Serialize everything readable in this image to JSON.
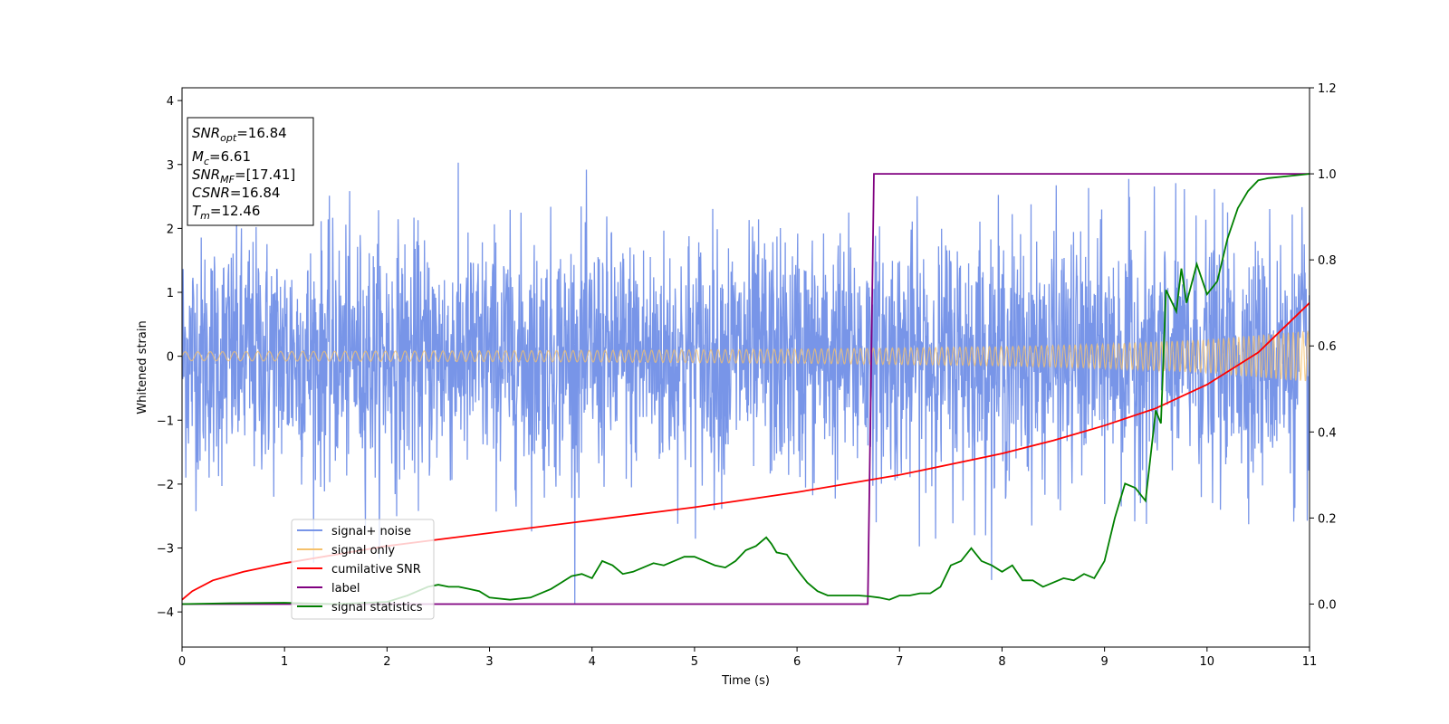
{
  "chart_data": {
    "type": "line",
    "xlabel": "Time (s)",
    "ylabel": "Whitened strain",
    "xlim": [
      0,
      11
    ],
    "ylim": [
      -4.55,
      4.2
    ],
    "y2lim": [
      -0.1,
      1.2
    ],
    "xticks": [
      "0",
      "1",
      "2",
      "3",
      "4",
      "5",
      "6",
      "7",
      "8",
      "9",
      "10",
      "11"
    ],
    "yticks": [
      "−4",
      "−3",
      "−2",
      "−1",
      "0",
      "1",
      "2",
      "3",
      "4"
    ],
    "y2ticks": [
      "0.0",
      "0.2",
      "0.4",
      "0.6",
      "0.8",
      "1.0",
      "1.2"
    ],
    "grid": false,
    "legend_position": "lower-left",
    "info_box": {
      "snr_opt": {
        "sym": "SNR",
        "sub": "opt",
        "val": "=16.84"
      },
      "mc": {
        "sym": "M",
        "sub": "c",
        "val": "=6.61"
      },
      "snr_mf": {
        "sym": "SNR",
        "sub": "MF",
        "val": "=[17.41]"
      },
      "csnr": {
        "sym": "CSNR",
        "sub": "",
        "val": "=16.84"
      },
      "tm": {
        "sym": "T",
        "sub": "m",
        "val": "=12.46"
      }
    },
    "series": [
      {
        "name": "signal+ noise",
        "color": "#7895e8",
        "axis": "left",
        "description_values": {
          "noise_sigma": 1.0,
          "max_abs": 4.2
        }
      },
      {
        "name": "signal only",
        "color": "#f5c16c",
        "axis": "left",
        "envelope": {
          "x": [
            0,
            2,
            4,
            6,
            8,
            9,
            10,
            11
          ],
          "amplitude": [
            0.07,
            0.08,
            0.09,
            0.11,
            0.15,
            0.19,
            0.26,
            0.4
          ]
        }
      },
      {
        "name": "cumilative SNR",
        "color": "#ff0000",
        "axis": "right",
        "x": [
          0,
          0.1,
          0.3,
          0.6,
          1,
          1.5,
          2,
          3,
          4,
          5,
          6,
          7,
          7.5,
          8,
          8.5,
          9,
          9.5,
          10,
          10.5,
          11
        ],
        "y": [
          0.01,
          0.03,
          0.055,
          0.075,
          0.095,
          0.115,
          0.135,
          0.165,
          0.195,
          0.225,
          0.26,
          0.3,
          0.325,
          0.35,
          0.38,
          0.415,
          0.455,
          0.51,
          0.585,
          0.7
        ]
      },
      {
        "name": "label",
        "color": "#800080",
        "axis": "right",
        "x": [
          0,
          6.69,
          6.75,
          11
        ],
        "y": [
          0.0,
          0.0,
          1.0,
          1.0
        ]
      },
      {
        "name": "signal statistics",
        "color": "#008000",
        "axis": "right",
        "x": [
          0,
          0.5,
          1,
          1.5,
          2,
          2.2,
          2.4,
          2.5,
          2.6,
          2.7,
          2.8,
          2.9,
          3,
          3.2,
          3.4,
          3.6,
          3.7,
          3.8,
          3.9,
          4,
          4.1,
          4.2,
          4.3,
          4.4,
          4.5,
          4.6,
          4.7,
          4.8,
          4.9,
          5,
          5.1,
          5.2,
          5.3,
          5.4,
          5.5,
          5.6,
          5.7,
          5.75,
          5.8,
          5.9,
          6,
          6.1,
          6.2,
          6.3,
          6.4,
          6.5,
          6.6,
          6.7,
          6.8,
          6.9,
          7,
          7.1,
          7.2,
          7.3,
          7.4,
          7.5,
          7.6,
          7.7,
          7.8,
          7.9,
          8,
          8.1,
          8.2,
          8.3,
          8.4,
          8.5,
          8.6,
          8.7,
          8.8,
          8.9,
          9,
          9.1,
          9.2,
          9.3,
          9.4,
          9.5,
          9.55,
          9.6,
          9.7,
          9.75,
          9.8,
          9.9,
          10,
          10.1,
          10.2,
          10.3,
          10.4,
          10.5,
          10.6,
          10.8,
          11
        ],
        "y": [
          0.0,
          0.002,
          0.003,
          0.0,
          0.005,
          0.02,
          0.04,
          0.045,
          0.04,
          0.04,
          0.035,
          0.03,
          0.015,
          0.01,
          0.015,
          0.035,
          0.05,
          0.065,
          0.07,
          0.06,
          0.1,
          0.09,
          0.07,
          0.075,
          0.085,
          0.095,
          0.09,
          0.1,
          0.11,
          0.11,
          0.1,
          0.09,
          0.085,
          0.1,
          0.125,
          0.135,
          0.155,
          0.14,
          0.12,
          0.115,
          0.08,
          0.05,
          0.03,
          0.02,
          0.02,
          0.02,
          0.02,
          0.018,
          0.015,
          0.01,
          0.02,
          0.02,
          0.025,
          0.025,
          0.04,
          0.09,
          0.1,
          0.13,
          0.1,
          0.09,
          0.075,
          0.09,
          0.055,
          0.055,
          0.04,
          0.05,
          0.06,
          0.055,
          0.07,
          0.06,
          0.1,
          0.2,
          0.28,
          0.27,
          0.24,
          0.45,
          0.42,
          0.73,
          0.68,
          0.78,
          0.7,
          0.79,
          0.72,
          0.75,
          0.85,
          0.92,
          0.96,
          0.985,
          0.99,
          0.995,
          1.0
        ]
      }
    ]
  }
}
